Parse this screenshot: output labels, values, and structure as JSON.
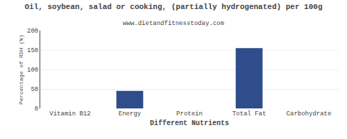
{
  "chart_data": {
    "type": "bar",
    "title": "Oil, soybean, salad or cooking, (partially hydrogenated) per 100g",
    "subtitle": "www.dietandfitnesstoday.com",
    "xlabel": "Different Nutrients",
    "ylabel": "Percentage of RDH (%)",
    "categories": [
      "Vitamin B12",
      "Energy",
      "Protein",
      "Total Fat",
      "Carbohydrate"
    ],
    "values": [
      0,
      45,
      0,
      155,
      0
    ],
    "color": "#2e4d8a",
    "ylim": [
      0,
      200
    ],
    "yticks": [
      0,
      50,
      100,
      150,
      200
    ],
    "grid": true
  }
}
